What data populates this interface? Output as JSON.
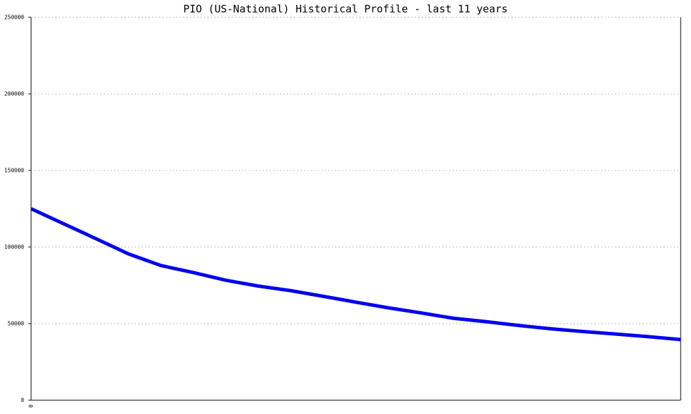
{
  "chart_data": {
    "type": "line",
    "title": "PIO (US-National) Historical Profile - last 11 years",
    "categories": [
      "0",
      null,
      null,
      null,
      null,
      null,
      null,
      null,
      null,
      null,
      null,
      null,
      null,
      null,
      null,
      null,
      null,
      null,
      null,
      null,
      null
    ],
    "series": [
      {
        "color": "#0000ee",
        "values": [
          125000,
          115200,
          105400,
          95500,
          87900,
          83300,
          78300,
          74500,
          71500,
          67800,
          64000,
          60300,
          57000,
          53500,
          51300,
          48800,
          46600,
          44800,
          43200,
          41500,
          39600
        ]
      }
    ],
    "ylim": [
      0,
      250000
    ],
    "yticks": [
      0,
      50000,
      100000,
      150000,
      200000,
      250000
    ],
    "grid": true
  }
}
